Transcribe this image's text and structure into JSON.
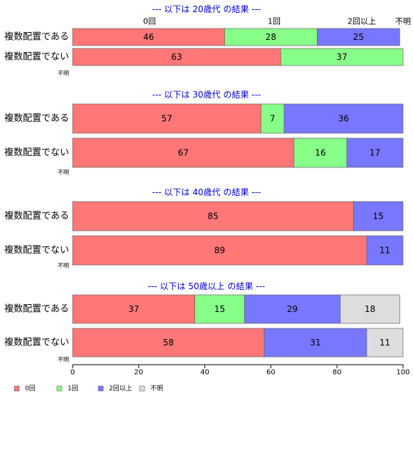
{
  "colors": {
    "0回": "#ff7777",
    "1回": "#88ff88",
    "2回以上": "#7777ff",
    "不明": "#dddddd",
    "title": "#0000cc"
  },
  "chart_data": {
    "type": "bar",
    "orientation": "horizontal",
    "stacked": true,
    "xlim": [
      0,
      100
    ],
    "x_ticks": [
      0,
      20,
      40,
      60,
      80,
      100
    ],
    "categories_legend": [
      "0回",
      "1回",
      "2回以上",
      "不明"
    ],
    "header_labels": [
      "0回",
      "1回",
      "2回以上",
      "不明"
    ],
    "unknown_label": "不明",
    "legend_position": "bottom-left",
    "panels": [
      {
        "title": "--- 以下は 20歳代 の結果 ---",
        "rows": [
          {
            "label": "複数配置である",
            "values": [
              46,
              28,
              25,
              0
            ]
          },
          {
            "label": "複数配置でない",
            "values": [
              63,
              37,
              0,
              0
            ]
          }
        ]
      },
      {
        "title": "--- 以下は 30歳代 の結果 ---",
        "rows": [
          {
            "label": "複数配置である",
            "values": [
              57,
              7,
              36,
              0
            ]
          },
          {
            "label": "複数配置でない",
            "values": [
              67,
              16,
              17,
              0
            ]
          }
        ]
      },
      {
        "title": "--- 以下は 40歳代 の結果 ---",
        "rows": [
          {
            "label": "複数配置である",
            "values": [
              85,
              0,
              15,
              0
            ]
          },
          {
            "label": "複数配置でない",
            "values": [
              89,
              0,
              11,
              0
            ]
          }
        ]
      },
      {
        "title": "--- 以下は 50歳以上 の結果 ---",
        "rows": [
          {
            "label": "複数配置である",
            "values": [
              37,
              15,
              29,
              18
            ]
          },
          {
            "label": "複数配置でない",
            "values": [
              58,
              0,
              31,
              11
            ]
          }
        ]
      }
    ]
  }
}
